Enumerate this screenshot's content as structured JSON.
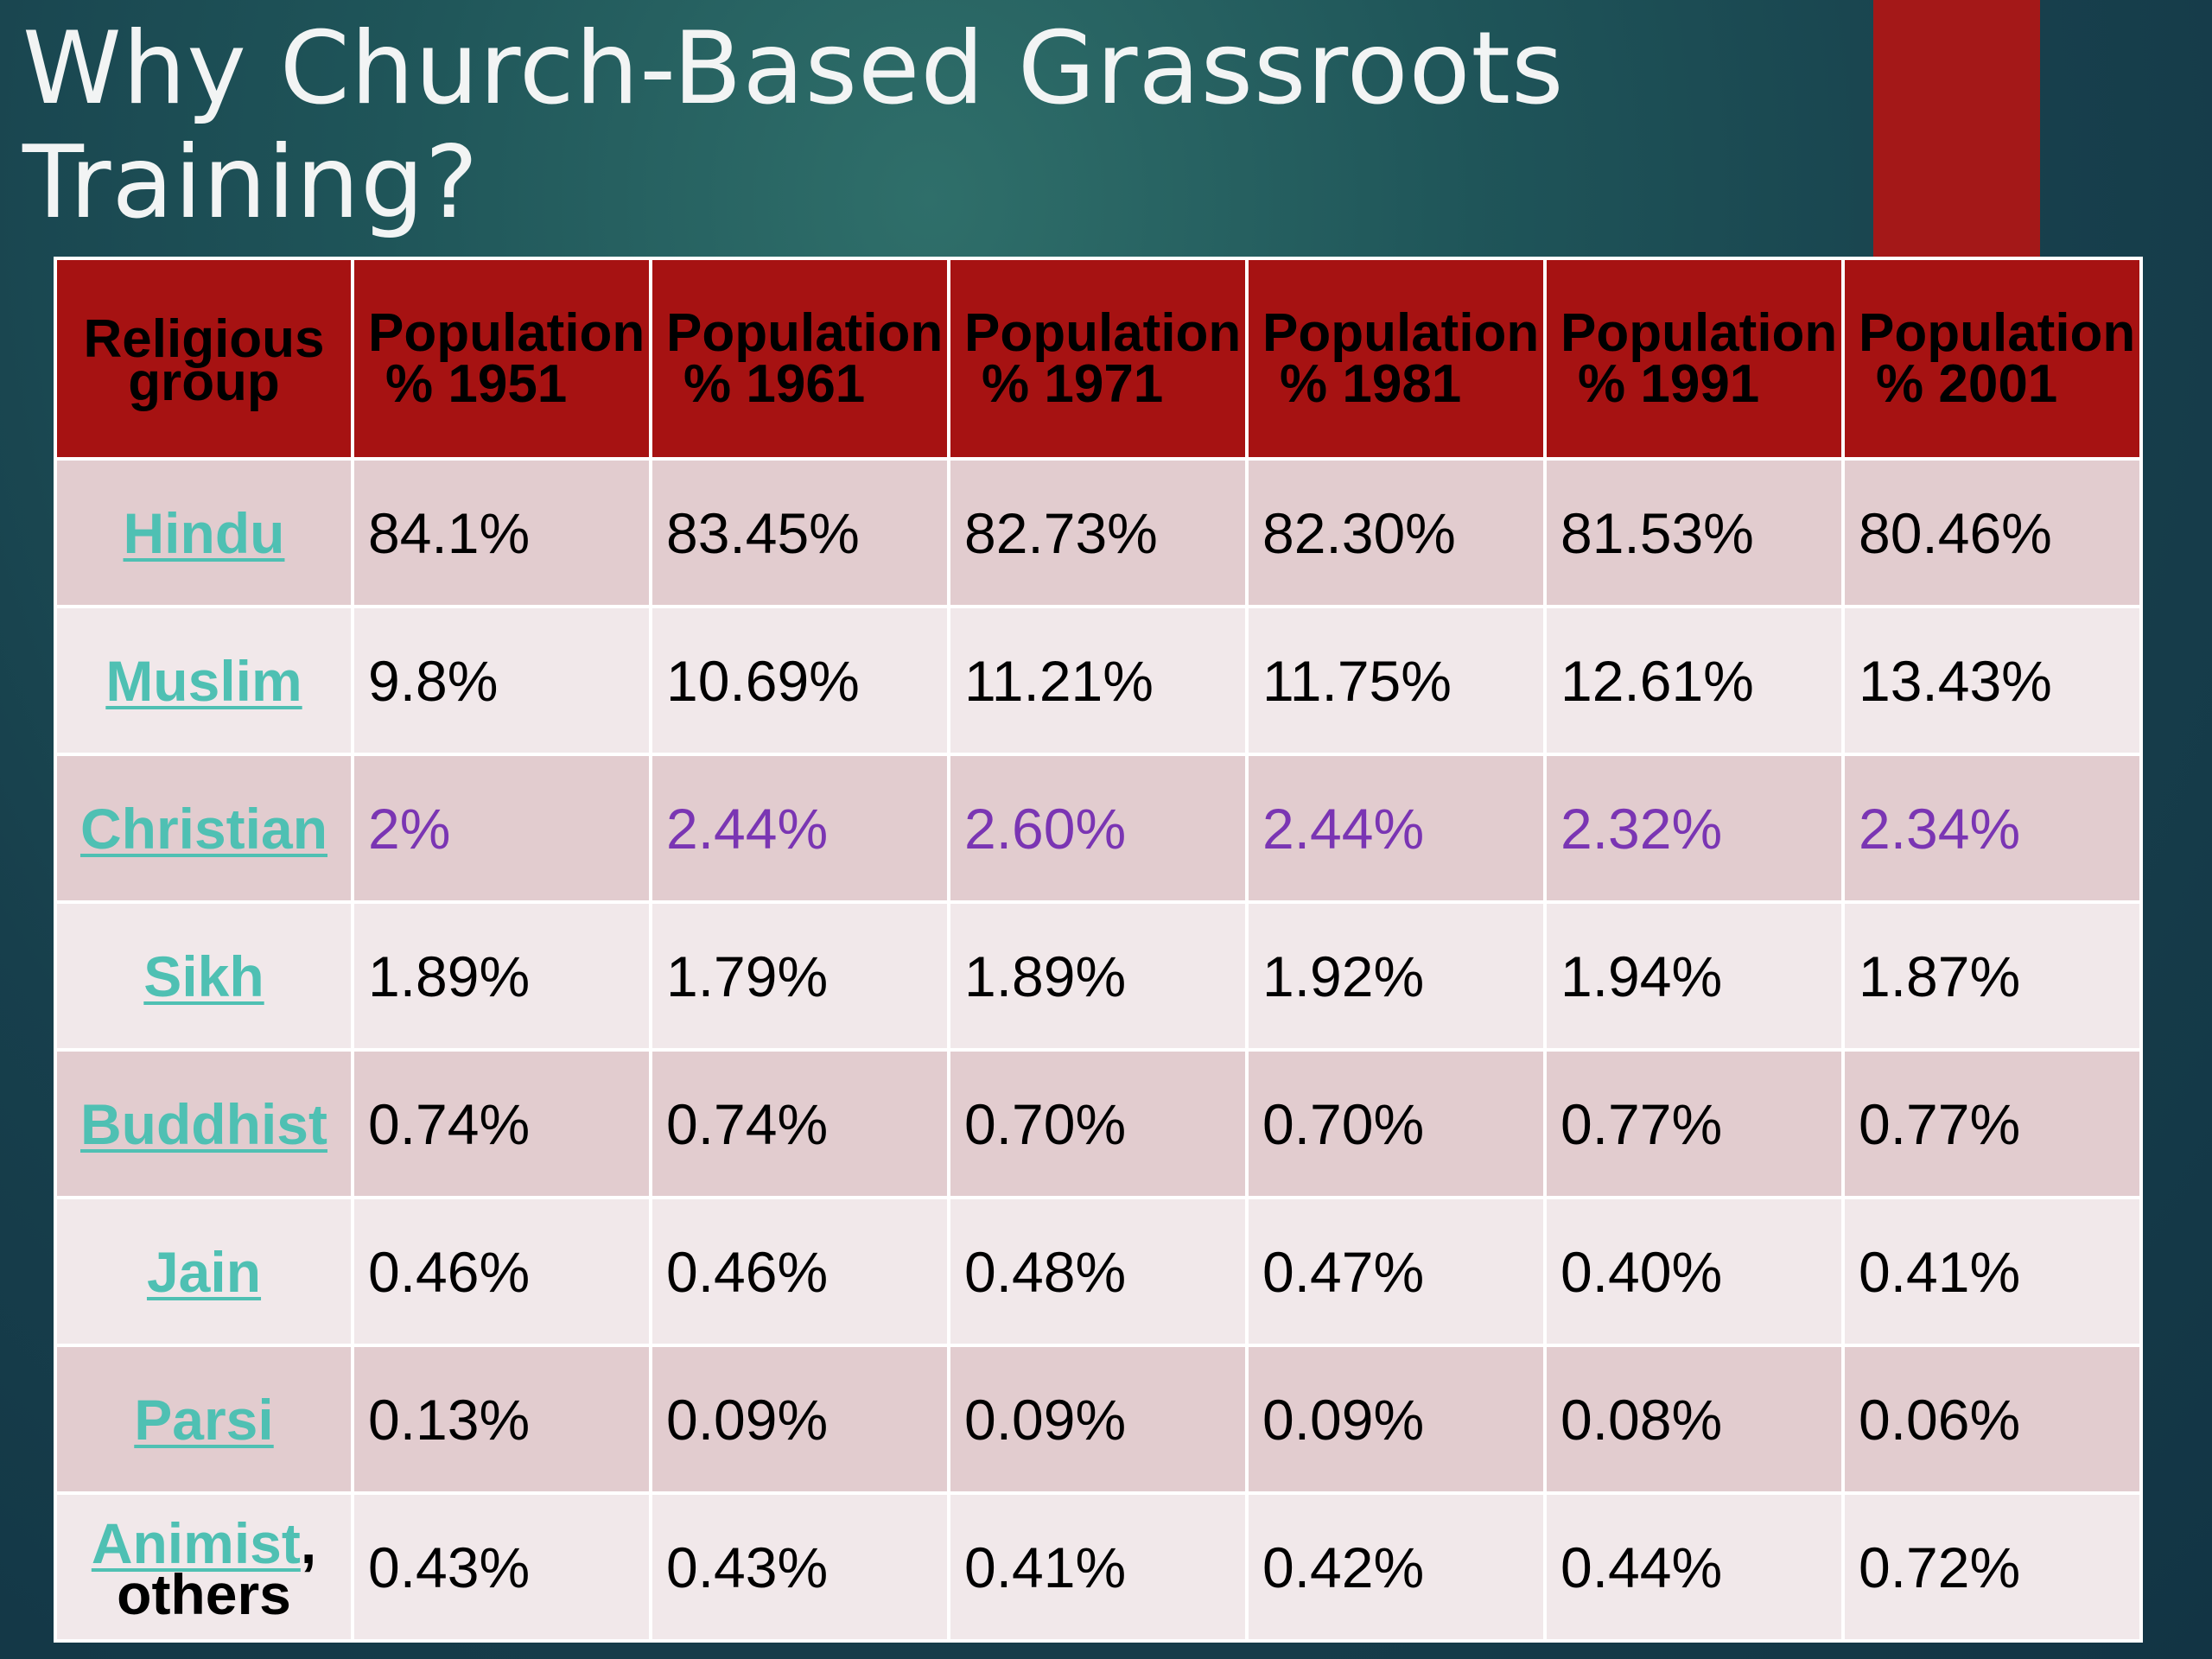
{
  "slide": {
    "title": "Why Church-Based Grassroots Training?",
    "accent_color": "#a41818",
    "highlight_color": "#7a35b3",
    "link_color": "#4fc0b3"
  },
  "table": {
    "header": {
      "group_label": "Religious group",
      "columns": [
        {
          "label": "Population",
          "year": "% 1951"
        },
        {
          "label": "Population",
          "year": "% 1961"
        },
        {
          "label": "Population",
          "year": "% 1971"
        },
        {
          "label": "Population",
          "year": "% 1981"
        },
        {
          "label": "Population",
          "year": "% 1991"
        },
        {
          "label": "Population",
          "year": "% 2001"
        }
      ]
    },
    "rows": [
      {
        "group": "Hindu",
        "values": [
          "84.1%",
          "83.45%",
          "82.73%",
          "82.30%",
          "81.53%",
          "80.46%"
        ]
      },
      {
        "group": "Muslim",
        "values": [
          "9.8%",
          "10.69%",
          "11.21%",
          "11.75%",
          "12.61%",
          "13.43%"
        ]
      },
      {
        "group": "Christian",
        "values": [
          "2%",
          "2.44%",
          "2.60%",
          "2.44%",
          "2.32%",
          "2.34%"
        ]
      },
      {
        "group": "Sikh",
        "values": [
          "1.89%",
          "1.79%",
          "1.89%",
          "1.92%",
          "1.94%",
          "1.87%"
        ]
      },
      {
        "group": "Buddhist",
        "values": [
          "0.74%",
          "0.74%",
          "0.70%",
          "0.70%",
          "0.77%",
          "0.77%"
        ]
      },
      {
        "group": "Jain",
        "values": [
          "0.46%",
          "0.46%",
          "0.48%",
          "0.47%",
          "0.40%",
          "0.41%"
        ]
      },
      {
        "group": "Parsi",
        "values": [
          "0.13%",
          "0.09%",
          "0.09%",
          "0.09%",
          "0.08%",
          "0.06%"
        ]
      },
      {
        "group": "Animist",
        "group_suffix": ",",
        "group_extra": "others",
        "values": [
          "0.43%",
          "0.43%",
          "0.41%",
          "0.42%",
          "0.44%",
          "0.72%"
        ]
      }
    ]
  }
}
